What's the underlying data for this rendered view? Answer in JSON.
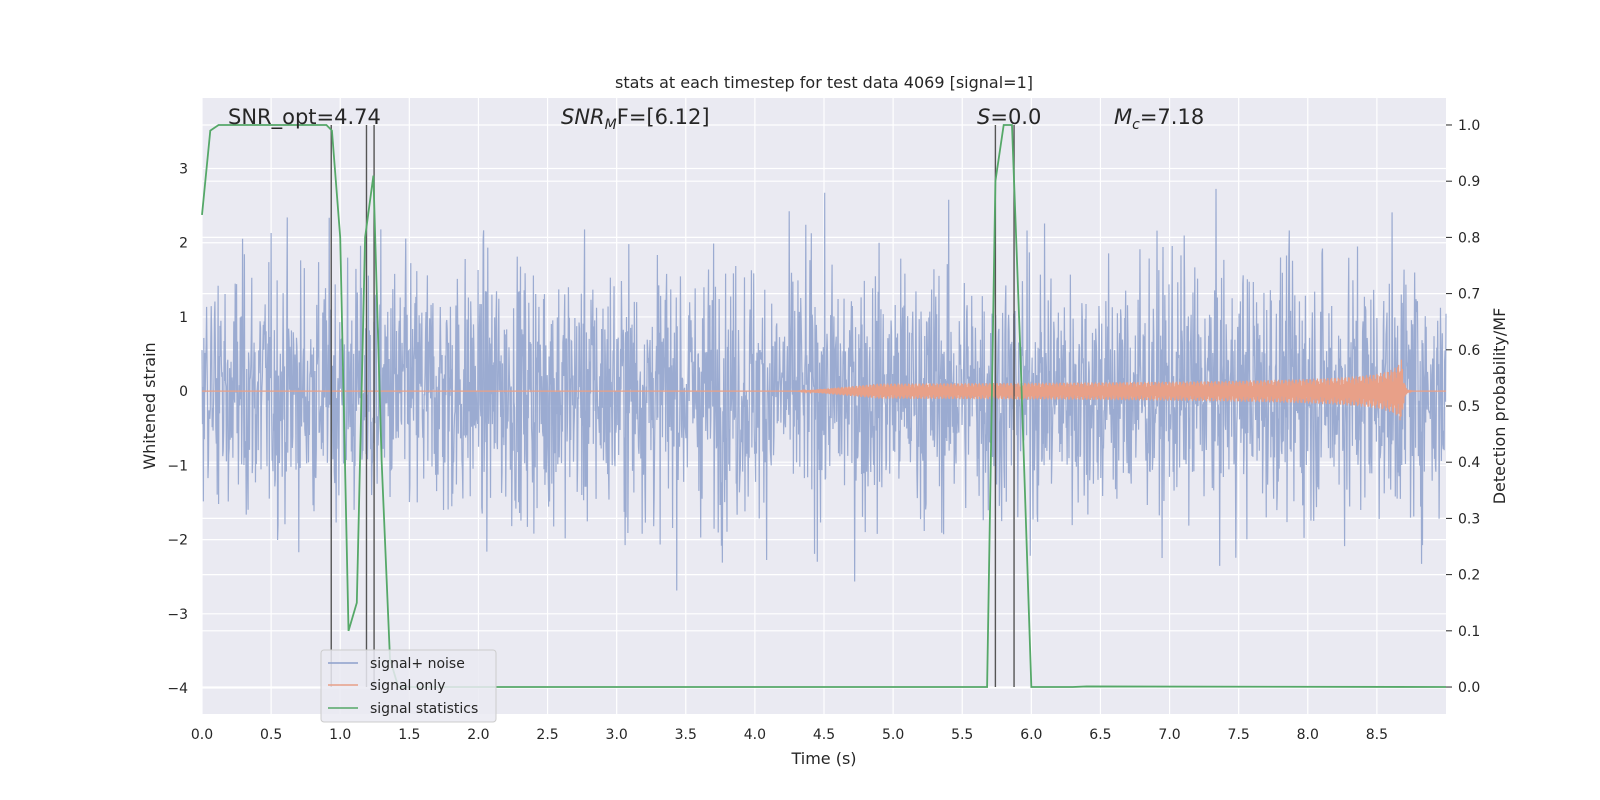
{
  "chart_data": {
    "type": "line",
    "title": "stats at each timestep for test data 4069 [signal=1]",
    "xlabel": "Time (s)",
    "ylabel": "Whitened strain",
    "y2label": "Detection probability/MF",
    "xlim": [
      0,
      9.0
    ],
    "ylim": [
      -4.35,
      3.95
    ],
    "y2lim": [
      -0.048,
      1.048
    ],
    "x_ticks": [
      "0.0",
      "0.5",
      "1.0",
      "1.5",
      "2.0",
      "2.5",
      "3.0",
      "3.5",
      "4.0",
      "4.5",
      "5.0",
      "5.5",
      "6.0",
      "6.5",
      "7.0",
      "7.5",
      "8.0",
      "8.5"
    ],
    "y_ticks": [
      "3",
      "2",
      "1",
      "0",
      "−1",
      "−2",
      "−3",
      "−4"
    ],
    "y2_ticks": [
      "1.0",
      "0.9",
      "0.8",
      "0.7",
      "0.6",
      "0.5",
      "0.4",
      "0.3",
      "0.2",
      "0.1",
      "0.0"
    ],
    "grid": true,
    "legend_placement": "lower-left",
    "series": [
      {
        "name": "signal+ noise",
        "color": "#8da0cb",
        "noise_std": 0.85
      },
      {
        "name": "signal only",
        "color": "#e8a088",
        "chirp_start": 4.3,
        "chirp_peak_time": 8.68,
        "peak_amplitude": 0.45
      },
      {
        "name": "signal statistics",
        "color": "#55a868",
        "axis": "right",
        "x": [
          0.0,
          0.06,
          0.12,
          0.3,
          0.6,
          0.9,
          0.94,
          1.0,
          1.06,
          1.12,
          1.18,
          1.24,
          1.3,
          1.36,
          1.42,
          5.6,
          5.68,
          5.74,
          5.8,
          5.86,
          5.92,
          6.0,
          6.3,
          6.4,
          9.0
        ],
        "values": [
          0.84,
          0.99,
          1.0,
          1.0,
          1.0,
          1.0,
          0.99,
          0.8,
          0.1,
          0.15,
          0.8,
          0.91,
          0.4,
          0.05,
          0.0,
          0.0,
          0.0,
          0.9,
          1.0,
          1.0,
          0.6,
          0.0,
          0.0,
          0.001,
          0.0
        ]
      }
    ],
    "vertical_lines_x": [
      0.935,
      1.19,
      1.245,
      5.74,
      5.875
    ],
    "annotations": {
      "snr_opt": "SNR_opt=4.74",
      "snr_mf_main": "SNR",
      "snr_mf_sub": "M",
      "snr_mf_rest": "F=[6.12]",
      "s_main": "S",
      "s_rest": "=0.0",
      "mc_main": "M",
      "mc_sub": "c",
      "mc_rest": "=7.18"
    }
  }
}
